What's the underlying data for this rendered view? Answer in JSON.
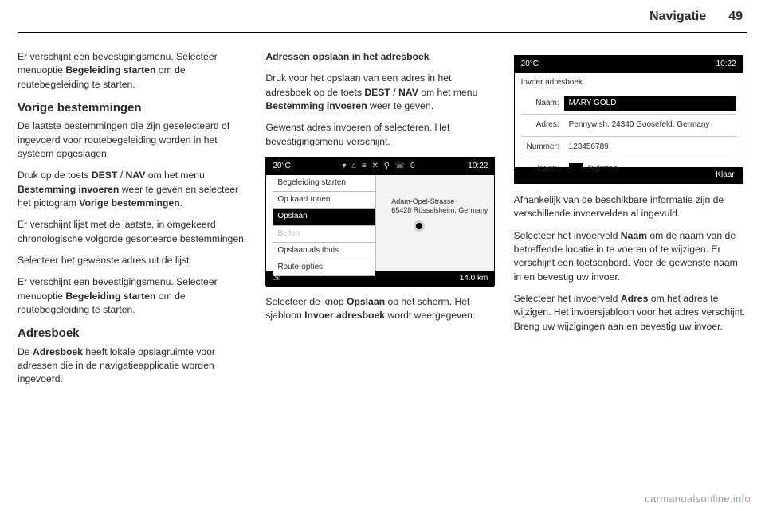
{
  "header": {
    "title": "Navigatie",
    "page": "49"
  },
  "col1": {
    "p1a": "Er verschijnt een bevestigingsmenu. Selecteer menuoptie ",
    "p1b": "Begeleiding starten",
    "p1c": " om de routebegeleiding te starten.",
    "h1": "Vorige bestemmingen",
    "p2": "De laatste bestemmingen die zijn geselecteerd of ingevoerd voor routebegeleiding worden in het systeem opgeslagen.",
    "p3a": "Druk op de toets ",
    "p3b": "DEST",
    "p3c": " / ",
    "p3d": "NAV",
    "p3e": " om het menu ",
    "p3f": "Bestemming invoeren",
    "p3g": " weer te geven en selecteer het pictogram ",
    "p3h": "Vorige bestemmingen",
    "p3i": ".",
    "p4": "Er verschijnt lijst met de laatste, in omgekeerd chronologische volgorde gesorteerde bestemmingen.",
    "p5": "Selecteer het gewenste adres uit de lijst.",
    "p6a": "Er verschijnt een bevestigingsmenu. Selecteer menuoptie ",
    "p6b": "Begeleiding starten",
    "p6c": " om de routebegeleiding te starten.",
    "h2": "Adresboek",
    "p7a": "De ",
    "p7b": "Adresboek",
    "p7c": " heeft lokale opslagruimte voor adressen die in de navigatieapplicatie worden ingevoerd."
  },
  "col2": {
    "h1": "Adressen opslaan in het adresboek",
    "p1a": "Druk voor het opslaan van een adres in het adresboek op de toets ",
    "p1b": "DEST",
    "p1c": " / ",
    "p1d": "NAV",
    "p1e": " om het menu ",
    "p1f": "Bestemming invoeren",
    "p1g": " weer te geven.",
    "p2": "Gewenst adres invoeren of selecteren. Het bevestigingsmenu verschijnt.",
    "shot": {
      "temp": "20°C",
      "time": "10:22",
      "icons": "▾ ⌂ ≡ ✕ ⚲ ☏ 0",
      "menu": [
        {
          "label": "Begeleiding starten",
          "state": ""
        },
        {
          "label": "Op kaart tonen",
          "state": ""
        },
        {
          "label": "Opslaan",
          "state": "sel"
        },
        {
          "label": "Bellen",
          "state": "dis"
        },
        {
          "label": "Opslaan als thuis",
          "state": ""
        },
        {
          "label": "Route-opties",
          "state": ""
        }
      ],
      "addr1": "Adam-Opel-Strasse",
      "addr2": "65428 Rüsselsheim, Germany",
      "distSym": "⇲",
      "dist": "14.0 km"
    },
    "p3a": "Selecteer de knop ",
    "p3b": "Opslaan",
    "p3c": " op het scherm. Het sjabloon ",
    "p3d": "Invoer adresboek",
    "p3e": " wordt weergegeven."
  },
  "col3": {
    "shot": {
      "temp": "20°C",
      "time": "10:22",
      "title": "Invoer adresboek",
      "rows": {
        "nameLbl": "Naam:",
        "nameVal": "MARY GOLD",
        "addrLbl": "Adres:",
        "addrVal": "Pennywish, 24340 Goosefeld, Germany",
        "numLbl": "Nummer:",
        "numVal": "123456789",
        "iconLbl": "Icoon:",
        "iconVal": "Duimtab"
      },
      "done": "Klaar"
    },
    "p1": "Afhankelijk van de beschikbare informatie zijn de verschillende invoervelden al ingevuld.",
    "p2a": "Selecteer het invoerveld ",
    "p2b": "Naam",
    "p2c": " om de naam van de betreffende locatie in te voeren of te wijzigen. Er verschijnt een toetsenbord. Voer de gewenste naam in en bevestig uw invoer.",
    "p3a": "Selecteer het invoerveld ",
    "p3b": "Adres",
    "p3c": " om het adres te wijzigen. Het invoersjabloon voor het adres verschijnt. Breng uw wijzigingen aan en bevestig uw invoer."
  },
  "watermark": "carmanualsonline.info"
}
